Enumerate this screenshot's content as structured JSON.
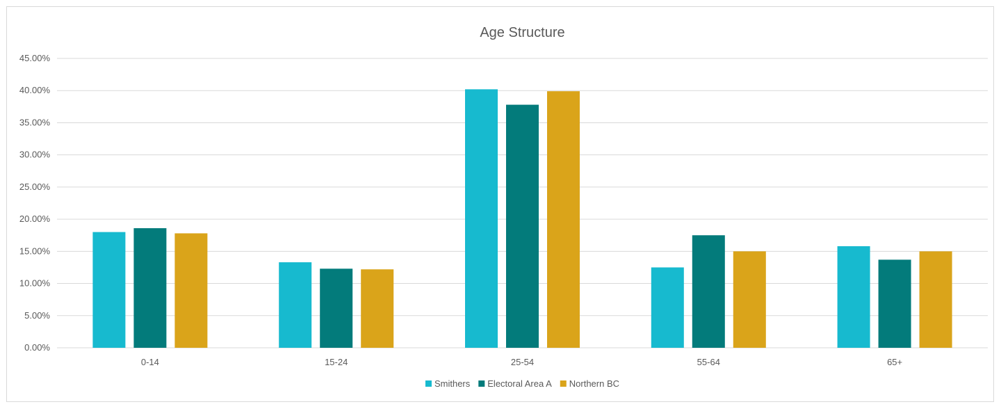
{
  "chart_data": {
    "type": "bar",
    "title": "Age Structure",
    "xlabel": "",
    "ylabel": "",
    "categories": [
      "0-14",
      "15-24",
      "25-54",
      "55-64",
      "65+"
    ],
    "series": [
      {
        "name": "Smithers",
        "color": "#17BACF",
        "values": [
          18.0,
          13.3,
          40.2,
          12.5,
          15.8
        ]
      },
      {
        "name": "Electoral Area A",
        "color": "#037B7B",
        "values": [
          18.6,
          12.3,
          37.8,
          17.5,
          13.7
        ]
      },
      {
        "name": "Northern BC",
        "color": "#DAA41A",
        "values": [
          17.8,
          12.2,
          39.9,
          15.0,
          15.0
        ]
      }
    ],
    "ylim": [
      0,
      45
    ],
    "ytick_step": 5,
    "ytick_labels": [
      "0.00%",
      "5.00%",
      "10.00%",
      "15.00%",
      "20.00%",
      "25.00%",
      "30.00%",
      "35.00%",
      "40.00%",
      "45.00%"
    ],
    "grid": true,
    "legend_position": "bottom"
  }
}
